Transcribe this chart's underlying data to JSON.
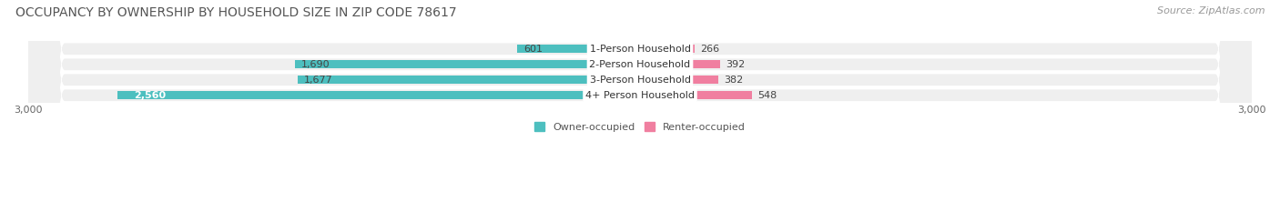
{
  "title": "OCCUPANCY BY OWNERSHIP BY HOUSEHOLD SIZE IN ZIP CODE 78617",
  "source": "Source: ZipAtlas.com",
  "categories": [
    "1-Person Household",
    "2-Person Household",
    "3-Person Household",
    "4+ Person Household"
  ],
  "owner_values": [
    601,
    1690,
    1677,
    2560
  ],
  "renter_values": [
    266,
    392,
    382,
    548
  ],
  "owner_color": "#4DBFBF",
  "renter_color": "#F07FA0",
  "background_color": "#FFFFFF",
  "row_bg_color": "#EFEFEF",
  "xlim": 3000,
  "legend_owner": "Owner-occupied",
  "legend_renter": "Renter-occupied",
  "title_fontsize": 10,
  "source_fontsize": 8,
  "label_fontsize": 8,
  "axis_fontsize": 8,
  "bar_height": 0.52,
  "figsize": [
    14.06,
    2.33
  ],
  "dpi": 100
}
